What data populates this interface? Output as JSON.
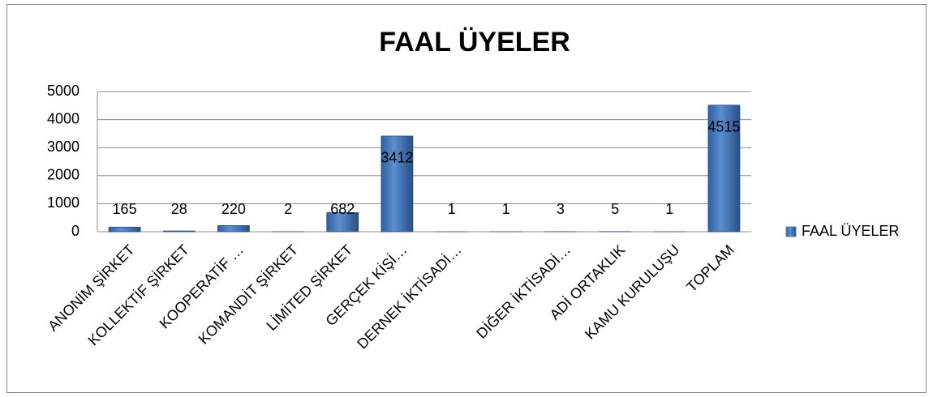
{
  "chart_data": {
    "type": "bar",
    "title": "FAAL ÜYELER",
    "categories": [
      "ANONİM ŞİRKET",
      "KOLLEKTİF ŞİRKET",
      "KOOPERATİF …",
      "KOMANDİT ŞİRKET",
      "LİMİTED ŞİRKET",
      "GERÇEK KİŞİ…",
      "DERNEK İKTİSADİ…",
      null,
      "DİĞER İKTİSADİ…",
      "ADİ ORTAKLIK",
      "KAMU KURULUŞU",
      "TOPLAM"
    ],
    "series": [
      {
        "name": "FAAL ÜYELER",
        "color": "#4f81bd",
        "values": [
          165,
          28,
          220,
          2,
          682,
          3412,
          1,
          1,
          3,
          5,
          1,
          4515
        ]
      }
    ],
    "ylim": [
      0,
      5000
    ],
    "yticks": [
      0,
      1000,
      2000,
      3000,
      4000,
      5000
    ],
    "grid": true,
    "legend": "right"
  }
}
